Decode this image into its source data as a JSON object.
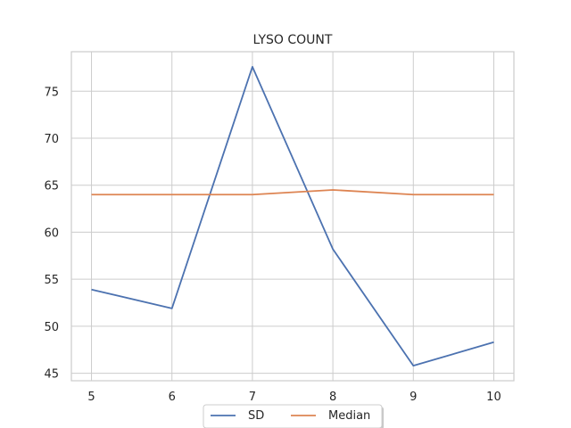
{
  "chart_data": {
    "type": "line",
    "title": "LYSO COUNT",
    "xlabel": "",
    "ylabel": "",
    "x": [
      5,
      6,
      7,
      8,
      9,
      10
    ],
    "series": [
      {
        "name": "SD",
        "color": "#4c72b0",
        "values": [
          53.9,
          51.9,
          77.6,
          58.2,
          45.8,
          48.3
        ]
      },
      {
        "name": "Median",
        "color": "#dd8452",
        "values": [
          64.0,
          64.0,
          64.0,
          64.5,
          64.0,
          64.0
        ]
      }
    ],
    "xticks": [
      5,
      6,
      7,
      8,
      9,
      10
    ],
    "yticks": [
      45,
      50,
      55,
      60,
      65,
      70,
      75
    ],
    "xlim": [
      4.75,
      10.25
    ],
    "ylim": [
      44.2,
      79.2
    ],
    "grid": true,
    "legend_position": "bottom-center",
    "grid_color": "#cccccc",
    "spine_color": "#cccccc"
  }
}
